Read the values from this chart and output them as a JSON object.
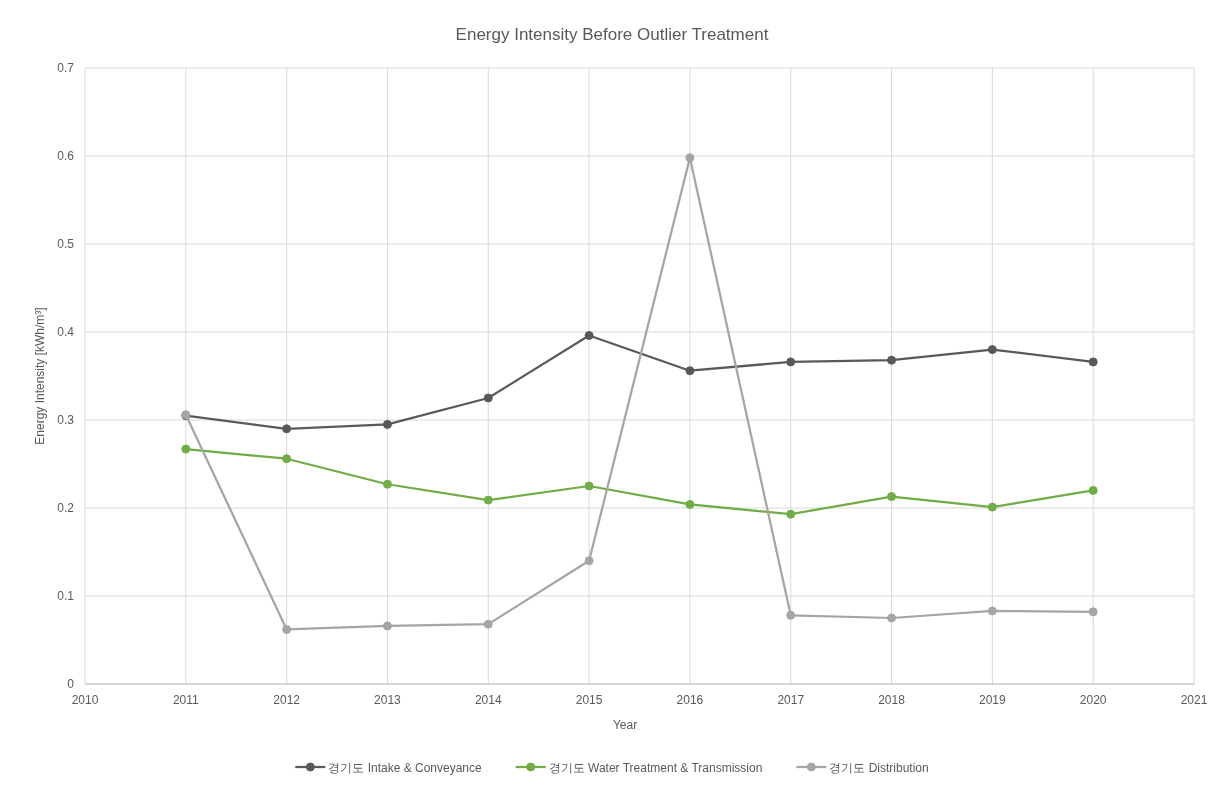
{
  "chart_data": {
    "type": "line",
    "title": "Energy Intensity Before Outlier Treatment",
    "xlabel": "Year",
    "ylabel": "Energy Intensity [kWh/m³]",
    "x": [
      2011,
      2012,
      2013,
      2014,
      2015,
      2016,
      2017,
      2018,
      2019,
      2020
    ],
    "series": [
      {
        "name": "경기도 Intake & Conveyance",
        "color": "#595959",
        "values": [
          0.305,
          0.29,
          0.295,
          0.325,
          0.396,
          0.356,
          0.366,
          0.368,
          0.38,
          0.366
        ]
      },
      {
        "name": "경기도 Water Treatment & Transmission",
        "color": "#70ad47",
        "values": [
          0.267,
          0.256,
          0.227,
          0.209,
          0.225,
          0.204,
          0.193,
          0.213,
          0.201,
          0.22
        ]
      },
      {
        "name": "경기도 Distribution",
        "color": "#a5a5a5",
        "values": [
          0.306,
          0.062,
          0.066,
          0.068,
          0.14,
          0.598,
          0.078,
          0.075,
          0.083,
          0.082
        ]
      }
    ],
    "xlim": [
      2010,
      2021
    ],
    "xticks": [
      2010,
      2011,
      2012,
      2013,
      2014,
      2015,
      2016,
      2017,
      2018,
      2019,
      2020,
      2021
    ],
    "ylim": [
      0,
      0.7
    ],
    "yticks": [
      0,
      0.1,
      0.2,
      0.3,
      0.4,
      0.5,
      0.6,
      0.7
    ],
    "grid": true,
    "legend": "bottom",
    "marker": "circle"
  }
}
